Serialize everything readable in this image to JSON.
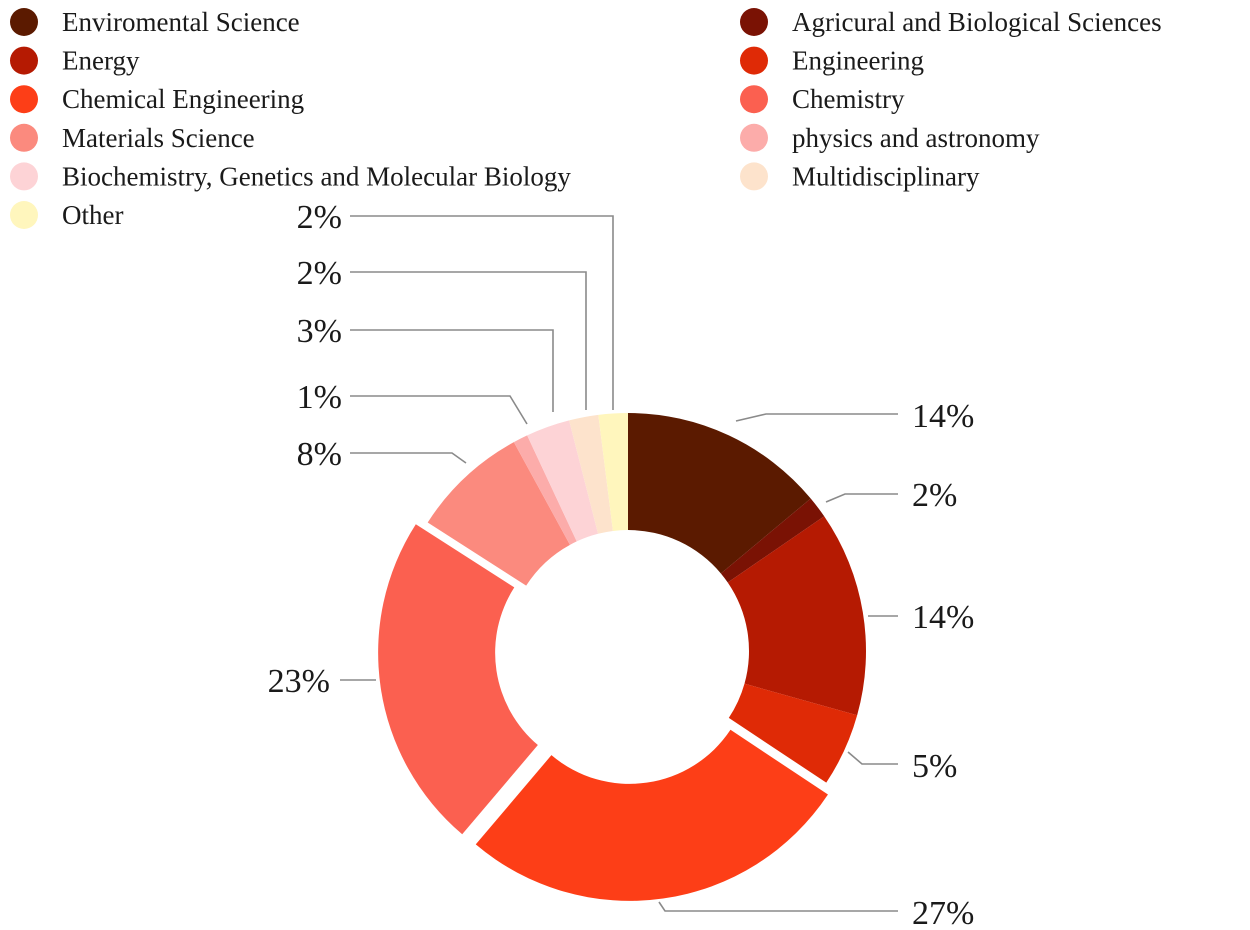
{
  "chart_data": {
    "type": "pie",
    "subtype": "donut",
    "title": "",
    "categories": [
      "Enviromental Science",
      "Agricural and Biological Sciences",
      "Energy",
      "Engineering",
      "Chemical Engineering",
      "Chemistry",
      "Materials Science",
      "physics and astronomy",
      "Biochemistry, Genetics and Molecular Biology",
      "Multidisciplinary",
      "Other"
    ],
    "values": [
      14,
      1.5,
      14,
      5,
      27,
      23,
      8,
      1,
      3,
      2,
      2
    ],
    "labels": [
      "14%",
      "2%",
      "14%",
      "5%",
      "27%",
      "23%",
      "8%",
      "1%",
      "3%",
      "2%",
      "2%"
    ],
    "colors": [
      "#5b1a00",
      "#7a1204",
      "#b51a02",
      "#df2a06",
      "#fd3e17",
      "#fb6050",
      "#fb8a7e",
      "#fcacaa",
      "#fdd3d6",
      "#fde3cc",
      "#fff6bd"
    ],
    "exploded": [
      false,
      false,
      false,
      false,
      true,
      true,
      false,
      false,
      false,
      false,
      false
    ],
    "legend_position": "top"
  }
}
